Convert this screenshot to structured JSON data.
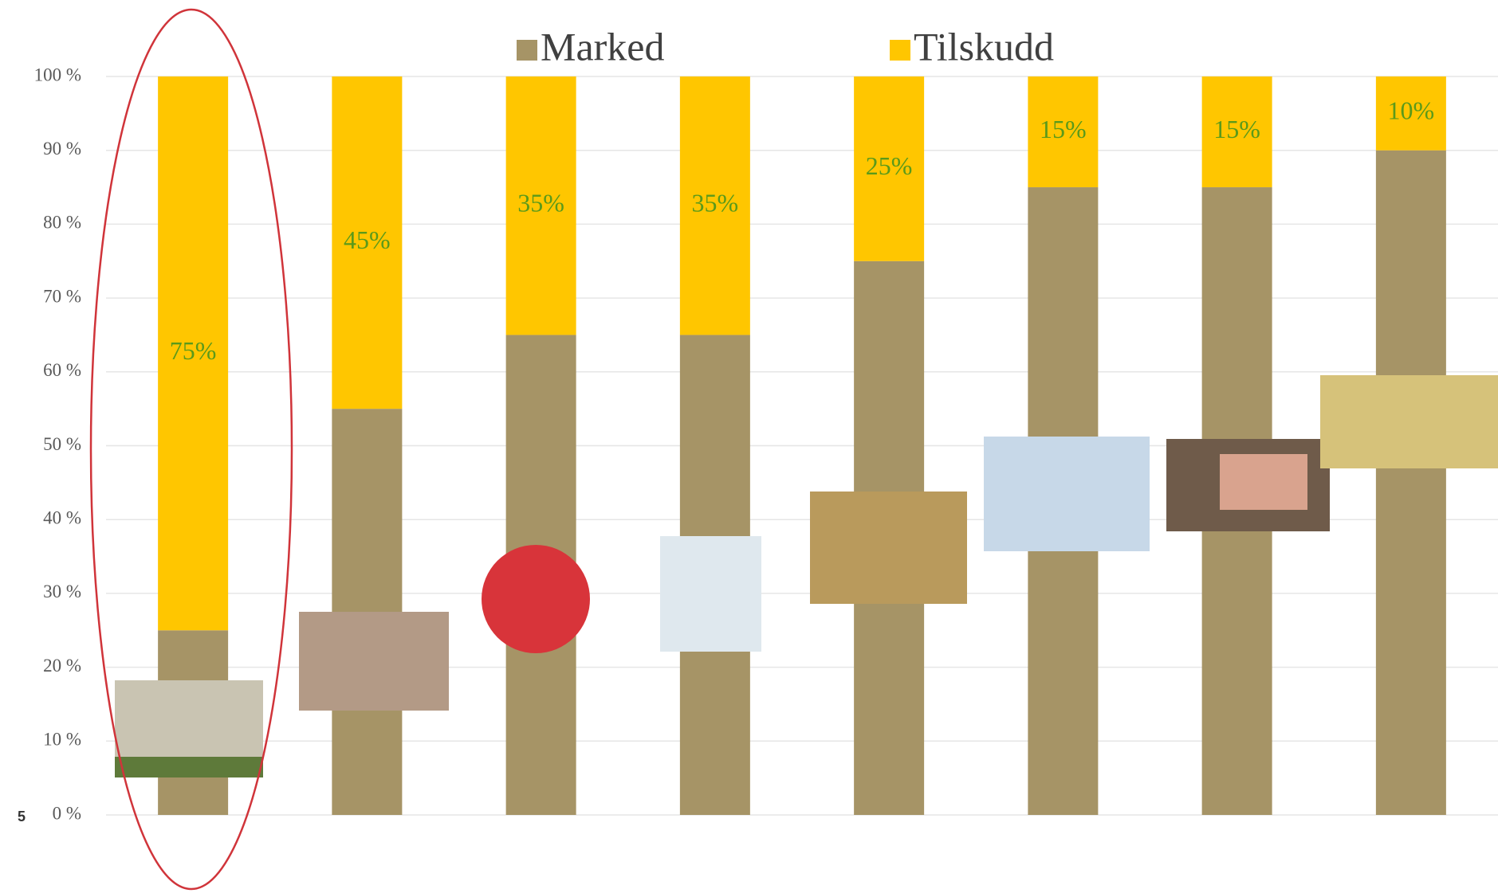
{
  "chart_data": {
    "type": "stacked_bar",
    "categories": [
      null,
      null,
      null,
      null,
      null,
      null,
      null,
      null
    ],
    "series": [
      {
        "name": "Marked",
        "color": "#a69466",
        "values": [
          25,
          55,
          65,
          65,
          75,
          85,
          85,
          90
        ]
      },
      {
        "name": "Tilskudd",
        "color": "#ffc600",
        "values": [
          75,
          45,
          35,
          35,
          25,
          15,
          15,
          10
        ],
        "value_labels": [
          "75%",
          "45%",
          "35%",
          "35%",
          "25%",
          "15%",
          "15%",
          "10%"
        ]
      }
    ],
    "ylim": [
      0,
      100
    ],
    "yticks": [
      {
        "value": 0,
        "label": "0 %"
      },
      {
        "value": 10,
        "label": "10 %"
      },
      {
        "value": 20,
        "label": "20 %"
      },
      {
        "value": 30,
        "label": "30 %"
      },
      {
        "value": 40,
        "label": "40 %"
      },
      {
        "value": 50,
        "label": "50 %"
      },
      {
        "value": 60,
        "label": "60 %"
      },
      {
        "value": 70,
        "label": "70 %"
      },
      {
        "value": 80,
        "label": "80 %"
      },
      {
        "value": 90,
        "label": "90 %"
      },
      {
        "value": 100,
        "label": "100 %"
      }
    ],
    "grid": true,
    "annotation": "5"
  }
}
